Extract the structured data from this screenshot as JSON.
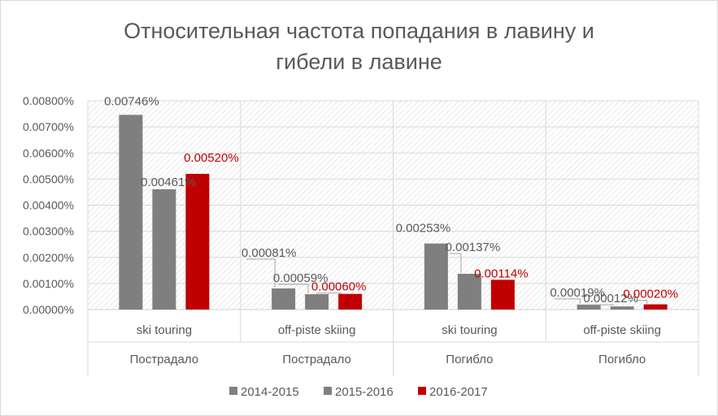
{
  "chart_data": {
    "type": "bar",
    "title_lines": [
      "Относительная частота попадания в лавину и",
      "гибели в лавине"
    ],
    "groups": [
      {
        "category": "ski touring",
        "group": "Пострадало"
      },
      {
        "category": "off-piste skiing",
        "group": "Пострадало"
      },
      {
        "category": "ski touring",
        "group": "Погибло"
      },
      {
        "category": "off-piste skiing",
        "group": "Погибло"
      }
    ],
    "series": [
      {
        "name": "2014-2015",
        "color": "#7f7f7f",
        "label_color": "#595959",
        "values": [
          0.00746,
          0.00081,
          0.00253,
          0.00019
        ],
        "labels": [
          "0.00746%",
          "0.00081%",
          "0.00253%",
          "0.00019%"
        ]
      },
      {
        "name": "2015-2016",
        "color": "#7f7f7f",
        "label_color": "#595959",
        "values": [
          0.00461,
          0.00059,
          0.00137,
          0.00012
        ],
        "labels": [
          "0.00461%",
          "0.00059%",
          "0.00137%",
          "0.00012%"
        ]
      },
      {
        "name": "2016-2017",
        "color": "#c00000",
        "label_color": "#c00000",
        "values": [
          0.0052,
          0.0006,
          0.00114,
          0.0002
        ],
        "labels": [
          "0.00520%",
          "0.00060%",
          "0.00114%",
          "0.00020%"
        ]
      }
    ],
    "y_ticks": [
      "0.00000%",
      "0.00100%",
      "0.00200%",
      "0.00300%",
      "0.00400%",
      "0.00500%",
      "0.00600%",
      "0.00700%",
      "0.00800%"
    ],
    "ylim": [
      0,
      0.008
    ],
    "grid": true,
    "legend_position": "bottom",
    "axis_color": "#d9d9d9",
    "text_color": "#595959"
  }
}
